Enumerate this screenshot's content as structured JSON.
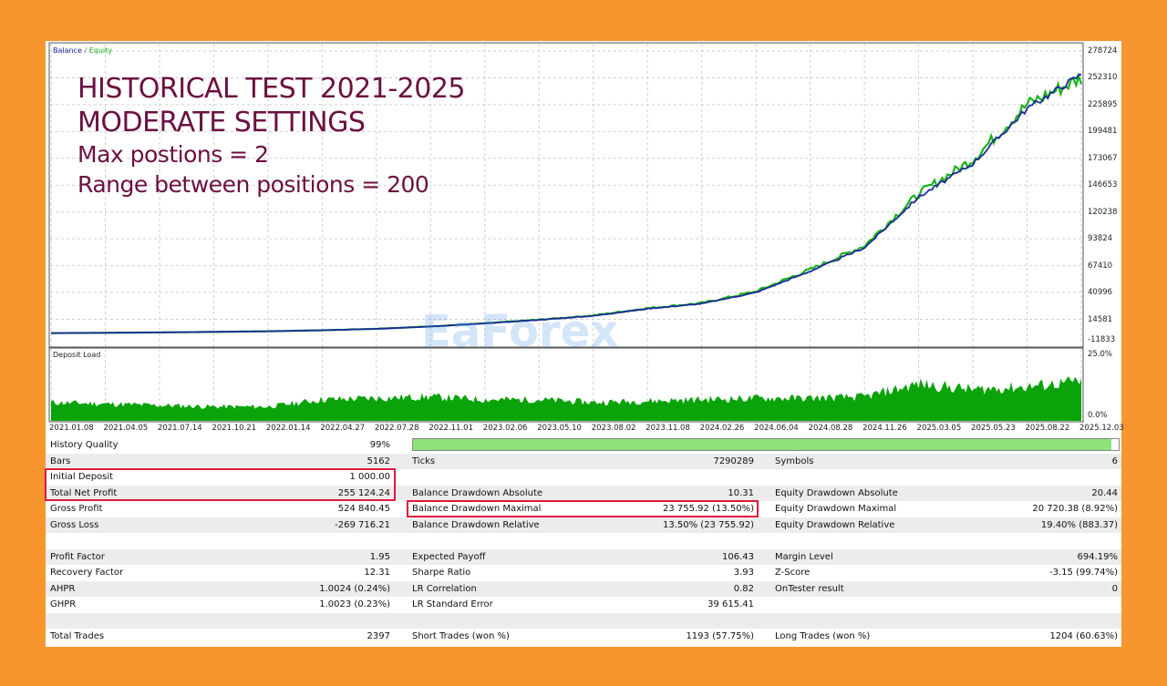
{
  "overlay": {
    "line1": "HISTORICAL TEST 2021-2025",
    "line2": "MODERATE SETTINGS",
    "line3": "Max postions = 2",
    "line4": "Range between positions = 200"
  },
  "logo_text": "EaForex",
  "colors": {
    "background": "#f7962f",
    "balance": "#1a2a9c",
    "equity": "#19b219",
    "deposit_load": "#0aa30a",
    "highlight": "#e0193f",
    "quality_bar": "#8de27a"
  },
  "chart_data": [
    {
      "type": "line",
      "title": "",
      "legend": [
        "Balance",
        "Equity"
      ],
      "legend_separator": "/",
      "legend_placement": "top-left",
      "yticks": [
        278724,
        252310,
        225895,
        199481,
        173067,
        146653,
        120238,
        93824,
        67410,
        40996,
        14581,
        -11833
      ],
      "ylim": [
        -11833,
        278724
      ],
      "x": [
        "2021.01.08",
        "2021.04.05",
        "2021.07.14",
        "2021.10.21",
        "2022.01.14",
        "2022.04.27",
        "2022.07.28",
        "2022.11.01",
        "2023.02.06",
        "2023.05.10",
        "2023.08.02",
        "2023.11.08",
        "2024.02.26",
        "2024.06.04",
        "2024.08.28",
        "2024.11.26",
        "2025.03.05",
        "2025.05.23",
        "2025.08.22",
        "2025.12.03"
      ],
      "series": [
        {
          "name": "Balance",
          "values": [
            1000,
            1300,
            1700,
            2200,
            2800,
            3800,
            5200,
            7500,
            10500,
            14000,
            18000,
            25000,
            30000,
            41000,
            62000,
            85000,
            135000,
            168000,
            222000,
            256000
          ]
        },
        {
          "name": "Equity",
          "values": [
            1000,
            1300,
            1700,
            2200,
            2800,
            3800,
            5300,
            7600,
            10600,
            14200,
            18300,
            25500,
            30500,
            42000,
            63500,
            87000,
            138000,
            172000,
            226000,
            252000
          ]
        }
      ],
      "grid": true
    },
    {
      "type": "area",
      "title": "Deposit Load",
      "yticks": [
        "25.0%",
        "0.0%"
      ],
      "ylim": [
        0,
        25
      ],
      "x": [
        "2021.01.08",
        "2021.04.05",
        "2021.07.14",
        "2021.10.21",
        "2022.01.14",
        "2022.04.27",
        "2022.07.28",
        "2022.11.01",
        "2023.02.06",
        "2023.05.10",
        "2023.08.02",
        "2023.11.08",
        "2024.02.26",
        "2024.06.04",
        "2024.08.28",
        "2024.11.26",
        "2025.03.05",
        "2025.05.23",
        "2025.08.22",
        "2025.12.03"
      ],
      "values": [
        6.5,
        6,
        5.5,
        5,
        5,
        7.5,
        8,
        8.5,
        7.5,
        7.5,
        6.5,
        7,
        7.5,
        8,
        8,
        8.5,
        13,
        11,
        12,
        14
      ]
    }
  ],
  "stats": {
    "history_quality_label": "History Quality",
    "history_quality_value": "99%",
    "history_quality_percent": 99,
    "rows": [
      [
        [
          "Bars",
          "5162"
        ],
        [
          "Ticks",
          "7290289"
        ],
        [
          "Symbols",
          "6"
        ]
      ],
      [
        [
          "Initial Deposit",
          "1 000.00"
        ],
        [
          "",
          ""
        ],
        [
          "",
          ""
        ]
      ],
      [
        [
          "Total Net Profit",
          "255 124.24"
        ],
        [
          "Balance Drawdown Absolute",
          "10.31"
        ],
        [
          "Equity Drawdown Absolute",
          "20.44"
        ]
      ],
      [
        [
          "Gross Profit",
          "524 840.45"
        ],
        [
          "Balance Drawdown Maximal",
          "23 755.92 (13.50%)"
        ],
        [
          "Equity Drawdown Maximal",
          "20 720.38 (8.92%)"
        ]
      ],
      [
        [
          "Gross Loss",
          "-269 716.21"
        ],
        [
          "Balance Drawdown Relative",
          "13.50% (23 755.92)"
        ],
        [
          "Equity Drawdown Relative",
          "19.40% (883.37)"
        ]
      ],
      [
        [
          "",
          ""
        ],
        [
          "",
          ""
        ],
        [
          "",
          ""
        ]
      ],
      [
        [
          "Profit Factor",
          "1.95"
        ],
        [
          "Expected Payoff",
          "106.43"
        ],
        [
          "Margin Level",
          "694.19%"
        ]
      ],
      [
        [
          "Recovery Factor",
          "12.31"
        ],
        [
          "Sharpe Ratio",
          "3.93"
        ],
        [
          "Z-Score",
          "-3.15 (99.74%)"
        ]
      ],
      [
        [
          "AHPR",
          "1.0024 (0.24%)"
        ],
        [
          "LR Correlation",
          "0.82"
        ],
        [
          "OnTester result",
          "0"
        ]
      ],
      [
        [
          "GHPR",
          "1.0023 (0.23%)"
        ],
        [
          "LR Standard Error",
          "39 615.41"
        ],
        [
          "",
          ""
        ]
      ],
      [
        [
          "",
          ""
        ],
        [
          "",
          ""
        ],
        [
          "",
          ""
        ]
      ],
      [
        [
          "Total Trades",
          "2397"
        ],
        [
          "Short Trades (won %)",
          "1193 (57.75%)"
        ],
        [
          "Long Trades (won %)",
          "1204 (60.63%)"
        ]
      ]
    ]
  }
}
